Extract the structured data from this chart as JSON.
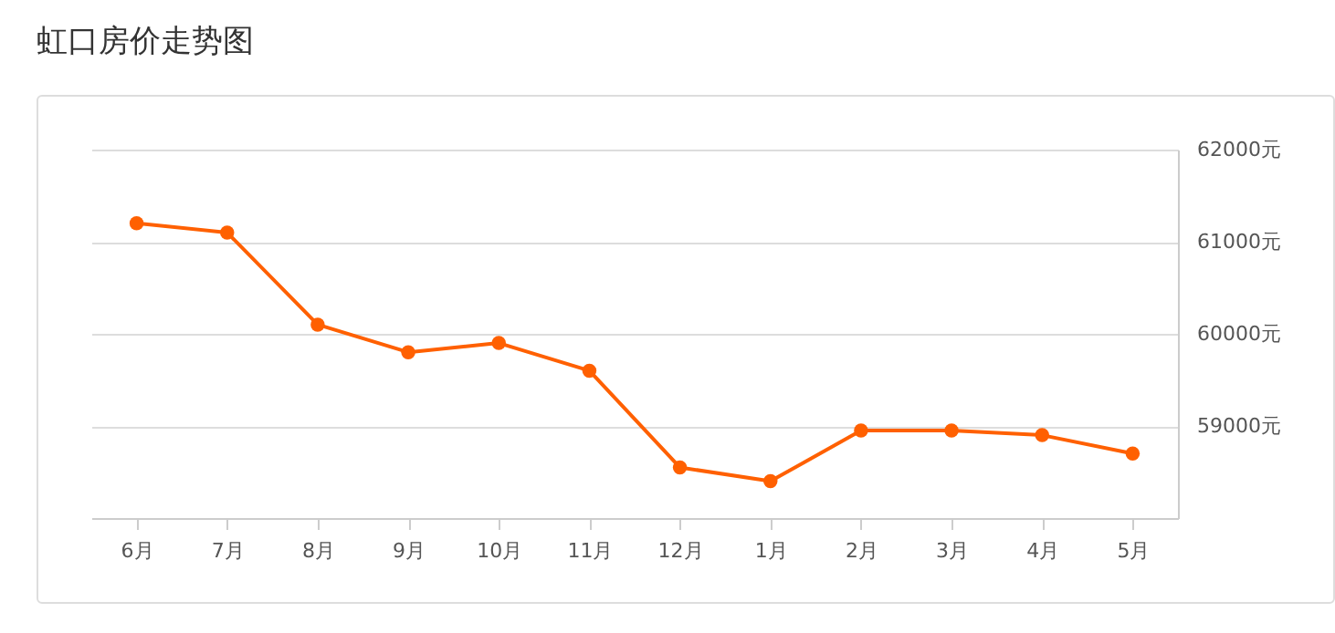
{
  "chart_data": {
    "type": "line",
    "title": "虹口房价走势图",
    "categories": [
      "6月",
      "7月",
      "8月",
      "9月",
      "10月",
      "11月",
      "12月",
      "1月",
      "2月",
      "3月",
      "4月",
      "5月"
    ],
    "series": [
      {
        "color": "#ff6000",
        "values": [
          61200,
          61100,
          60100,
          59800,
          59900,
          59600,
          58550,
          58400,
          58950,
          58950,
          58900,
          58700
        ]
      }
    ],
    "ylim": [
      58000,
      62000
    ],
    "yticks": [
      {
        "value": 59000,
        "label": "59000元"
      },
      {
        "value": 60000,
        "label": "60000元"
      },
      {
        "value": 61000,
        "label": "61000元"
      },
      {
        "value": 62000,
        "label": "62000元"
      }
    ],
    "grid": "y",
    "marker": "circle",
    "line_style": "solid"
  }
}
